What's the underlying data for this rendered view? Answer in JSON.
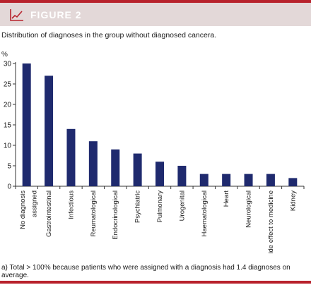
{
  "header": {
    "figure_label": "FIGURE 2",
    "subtitle": "Distribution of diagnoses in the group without diagnosed cancera.",
    "icon": "line-chart-icon"
  },
  "footnote": "a) Total > 100% because patients who were assigned with a diagnosis had 1.4 diagnoses on average.",
  "colors": {
    "accent": "#b8222c",
    "banner": "#e3d8d8",
    "bar": "#1f2a6e"
  },
  "chart_data": {
    "type": "bar",
    "ylabel": "%",
    "ylim": [
      0,
      30
    ],
    "yticks": [
      0,
      5,
      10,
      15,
      20,
      25,
      30
    ],
    "grid": false,
    "categories": [
      [
        "No diagnosis",
        "assigned"
      ],
      [
        "Gastrointestinal"
      ],
      [
        "Infectious"
      ],
      [
        "Reumatological"
      ],
      [
        "Endocrinological"
      ],
      [
        "Psychiatric"
      ],
      [
        "Pulmonary"
      ],
      [
        "Urogenital"
      ],
      [
        "Haematological"
      ],
      [
        "Heart"
      ],
      [
        "Neurological"
      ],
      [
        "Side effect to medicine"
      ],
      [
        "Kidney"
      ]
    ],
    "values": [
      30,
      27,
      14,
      11,
      9,
      8,
      6,
      5,
      3,
      3,
      3,
      3,
      2
    ]
  }
}
